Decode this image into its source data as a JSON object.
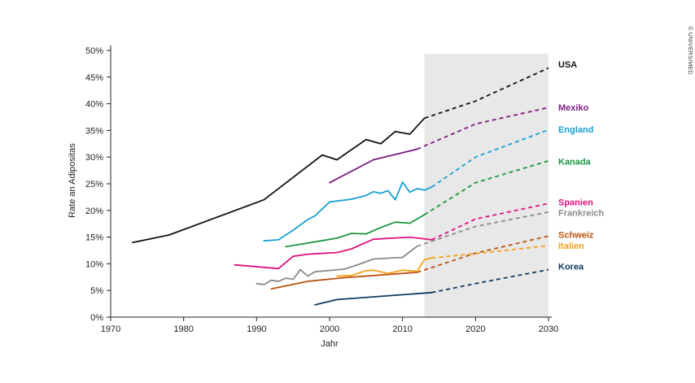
{
  "chart_data": {
    "type": "line",
    "xlabel": "Jahr",
    "ylabel": "Rate an Adipositas",
    "credit": "© UNIVERSIMED",
    "xlim": [
      1970,
      2030
    ],
    "ylim": [
      0,
      50
    ],
    "x_ticks": [
      1970,
      1980,
      1990,
      2000,
      2010,
      2020,
      2030
    ],
    "x_tick_labels": [
      "1970",
      "1980",
      "1990",
      "2000",
      "2010",
      "2020",
      "2030"
    ],
    "y_ticks": [
      0,
      5,
      10,
      15,
      20,
      25,
      30,
      35,
      40,
      45,
      50
    ],
    "y_tick_labels": [
      "0%",
      "5%",
      "10%",
      "15%",
      "20%",
      "25%",
      "30%",
      "35%",
      "40%",
      "45%",
      "50%"
    ],
    "projection_shading": {
      "from": 2013,
      "to": 2030,
      "color": "#e8e8e8"
    },
    "series": [
      {
        "name": "USA",
        "color": "#111111",
        "observed": [
          [
            1973,
            14
          ],
          [
            1978,
            15.4
          ],
          [
            1991,
            22
          ],
          [
            1999,
            30.4
          ],
          [
            2001,
            29.5
          ],
          [
            2005,
            33.3
          ],
          [
            2007,
            32.5
          ],
          [
            2009,
            34.8
          ],
          [
            2011,
            34.3
          ],
          [
            2013,
            37.3
          ]
        ],
        "projected": [
          [
            2013,
            37.3
          ],
          [
            2020,
            40.5
          ],
          [
            2030,
            46.7
          ]
        ]
      },
      {
        "name": "Mexiko",
        "color": "#7b1a7d",
        "observed": [
          [
            2000,
            25.2
          ],
          [
            2006,
            29.5
          ],
          [
            2012,
            31.5
          ]
        ],
        "projected": [
          [
            2012,
            31.5
          ],
          [
            2020,
            36.2
          ],
          [
            2030,
            39.3
          ]
        ]
      },
      {
        "name": "England",
        "color": "#1a9fd1",
        "observed": [
          [
            1991,
            14.3
          ],
          [
            1993,
            14.5
          ],
          [
            1995,
            16.3
          ],
          [
            1997,
            18.3
          ],
          [
            1998,
            19
          ],
          [
            2000,
            21.6
          ],
          [
            2003,
            22.1
          ],
          [
            2005,
            22.8
          ],
          [
            2006,
            23.5
          ],
          [
            2007,
            23.2
          ],
          [
            2008,
            23.7
          ],
          [
            2009,
            22
          ],
          [
            2010,
            25.3
          ],
          [
            2011,
            23.4
          ],
          [
            2012,
            24.1
          ],
          [
            2013,
            23.8
          ],
          [
            2014,
            24.4
          ]
        ],
        "projected": [
          [
            2014,
            24.4
          ],
          [
            2020,
            30
          ],
          [
            2030,
            35.1
          ]
        ]
      },
      {
        "name": "Kanada",
        "color": "#1a9641",
        "observed": [
          [
            1994,
            13.2
          ],
          [
            2001,
            14.8
          ],
          [
            2003,
            15.7
          ],
          [
            2005,
            15.6
          ],
          [
            2007,
            16.8
          ],
          [
            2009,
            17.8
          ],
          [
            2011,
            17.6
          ],
          [
            2013,
            19.2
          ]
        ],
        "projected": [
          [
            2013,
            19.2
          ],
          [
            2020,
            25.2
          ],
          [
            2030,
            29.3
          ]
        ]
      },
      {
        "name": "Spanien",
        "color": "#e0127f",
        "observed": [
          [
            1987,
            9.8
          ],
          [
            1993,
            9.1
          ],
          [
            1995,
            11.4
          ],
          [
            1997,
            11.8
          ],
          [
            2001,
            12.1
          ],
          [
            2003,
            12.8
          ],
          [
            2006,
            14.6
          ],
          [
            2011,
            15.0
          ],
          [
            2014,
            14.5
          ]
        ],
        "projected": [
          [
            2014,
            14.5
          ],
          [
            2020,
            18.4
          ],
          [
            2030,
            21.3
          ]
        ]
      },
      {
        "name": "Frankreich",
        "color": "#8a8a8a",
        "observed": [
          [
            1990,
            6.3
          ],
          [
            1991,
            6.1
          ],
          [
            1992,
            6.9
          ],
          [
            1993,
            6.7
          ],
          [
            1994,
            7.3
          ],
          [
            1995,
            7.1
          ],
          [
            1996,
            8.9
          ],
          [
            1997,
            7.7
          ],
          [
            1998,
            8.5
          ],
          [
            2002,
            9.0
          ],
          [
            2004,
            9.9
          ],
          [
            2006,
            10.9
          ],
          [
            2010,
            11.2
          ],
          [
            2012,
            13.3
          ]
        ],
        "projected": [
          [
            2012,
            13.3
          ],
          [
            2020,
            17
          ],
          [
            2030,
            19.7
          ]
        ]
      },
      {
        "name": "Schweiz",
        "color": "#b8520f",
        "observed": [
          [
            1992,
            5.3
          ],
          [
            1997,
            6.7
          ],
          [
            2002,
            7.4
          ],
          [
            2007,
            7.9
          ],
          [
            2012,
            8.4
          ]
        ],
        "projected": [
          [
            2012,
            8.4
          ],
          [
            2020,
            12
          ],
          [
            2030,
            15.2
          ]
        ]
      },
      {
        "name": "Italien",
        "color": "#f5a01a",
        "observed": [
          [
            2001,
            7.7
          ],
          [
            2003,
            7.8
          ],
          [
            2005,
            8.7
          ],
          [
            2006,
            8.8
          ],
          [
            2008,
            8.2
          ],
          [
            2010,
            8.8
          ],
          [
            2012,
            8.6
          ],
          [
            2013,
            10.8
          ],
          [
            2014,
            11.1
          ]
        ],
        "projected": [
          [
            2014,
            11.1
          ],
          [
            2020,
            11.9
          ],
          [
            2030,
            13.4
          ]
        ]
      },
      {
        "name": "Korea",
        "color": "#113a63",
        "observed": [
          [
            1998,
            2.3
          ],
          [
            2001,
            3.3
          ],
          [
            2014,
            4.6
          ]
        ],
        "projected": [
          [
            2014,
            4.6
          ],
          [
            2020,
            6.3
          ],
          [
            2030,
            8.9
          ]
        ]
      }
    ],
    "labels": [
      {
        "text": "USA",
        "color": "#111111",
        "y": 47.4
      },
      {
        "text": "Mexiko",
        "color": "#7b1a7d",
        "y": 39.3
      },
      {
        "text": "England",
        "color": "#1a9fd1",
        "y": 35.2
      },
      {
        "text": "Kanada",
        "color": "#1a9641",
        "y": 29.2
      },
      {
        "text": "Spanien",
        "color": "#e0127f",
        "y": 21.6
      },
      {
        "text": "Frankreich",
        "color": "#8a8a8a",
        "y": 19.6
      },
      {
        "text": "Schweiz",
        "color": "#b8520f",
        "y": 15.5
      },
      {
        "text": "Italien",
        "color": "#f5a01a",
        "y": 13.4
      },
      {
        "text": "Korea",
        "color": "#113a63",
        "y": 9.5
      }
    ]
  }
}
